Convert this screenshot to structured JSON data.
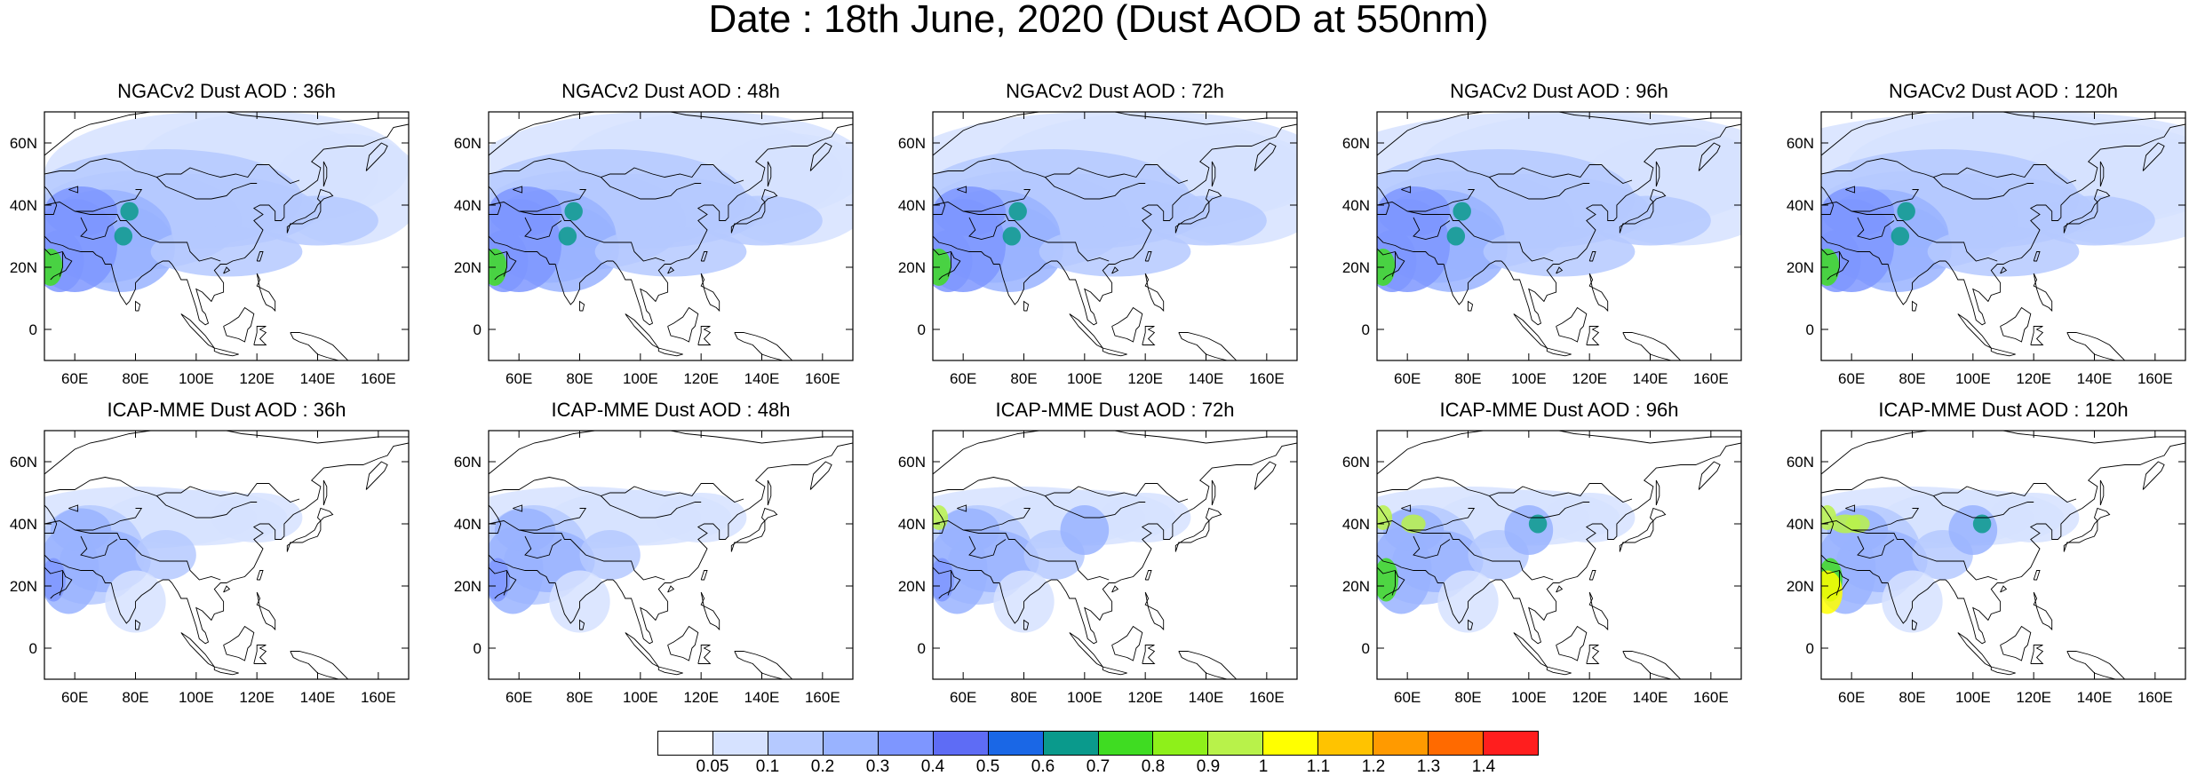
{
  "title": "Date : 18th June, 2020 (Dust AOD at 550nm)",
  "map_axes": {
    "lat_ticks": [
      "60N",
      "40N",
      "20N",
      "0"
    ],
    "lon_ticks": [
      "60E",
      "80E",
      "100E",
      "120E",
      "140E",
      "160E"
    ]
  },
  "panels": [
    {
      "title": "NGACv2 Dust AOD : 36h",
      "model": "NGACv2",
      "lead": "36h"
    },
    {
      "title": "NGACv2 Dust AOD : 48h",
      "model": "NGACv2",
      "lead": "48h"
    },
    {
      "title": "NGACv2 Dust AOD : 72h",
      "model": "NGACv2",
      "lead": "72h"
    },
    {
      "title": "NGACv2 Dust AOD : 96h",
      "model": "NGACv2",
      "lead": "96h"
    },
    {
      "title": "NGACv2 Dust AOD : 120h",
      "model": "NGACv2",
      "lead": "120h"
    },
    {
      "title": "ICAP-MME Dust AOD : 36h",
      "model": "ICAP-MME",
      "lead": "36h"
    },
    {
      "title": "ICAP-MME Dust AOD : 48h",
      "model": "ICAP-MME",
      "lead": "48h"
    },
    {
      "title": "ICAP-MME Dust AOD : 72h",
      "model": "ICAP-MME",
      "lead": "72h"
    },
    {
      "title": "ICAP-MME Dust AOD : 96h",
      "model": "ICAP-MME",
      "lead": "96h"
    },
    {
      "title": "ICAP-MME Dust AOD : 120h",
      "model": "ICAP-MME",
      "lead": "120h"
    }
  ],
  "colorbar": {
    "labels": [
      "0.05",
      "0.1",
      "0.2",
      "0.3",
      "0.4",
      "0.5",
      "0.6",
      "0.7",
      "0.8",
      "0.9",
      "1",
      "1.1",
      "1.2",
      "1.3",
      "1.4"
    ],
    "colors": [
      "#ffffff",
      "#d6e2ff",
      "#b5c9ff",
      "#99b3ff",
      "#7e96ff",
      "#5e6cf5",
      "#1a67e6",
      "#0a9a8c",
      "#3fdc22",
      "#8ef01a",
      "#b8f24a",
      "#ffff00",
      "#ffc300",
      "#ff9a00",
      "#ff6a00",
      "#ff1e1e"
    ]
  }
}
